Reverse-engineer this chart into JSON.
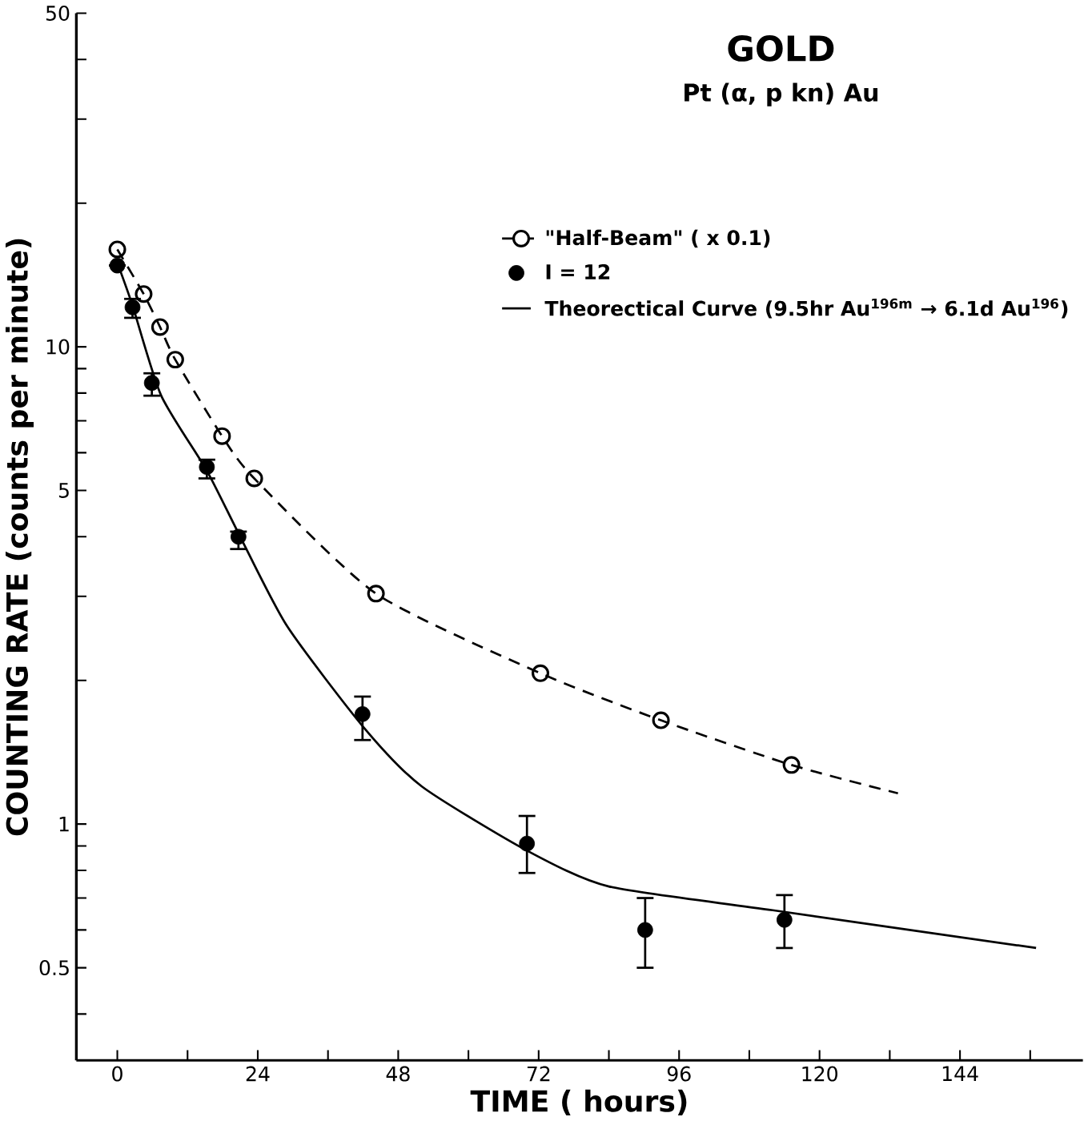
{
  "chart_data": {
    "type": "line",
    "title": "GOLD",
    "subtitle": "Pt (α, p kn) Au",
    "xlabel": "TIME  ( hours)",
    "ylabel": "COUNTING  RATE  (counts per minute)",
    "log": "y",
    "xlim": [
      -7,
      165
    ],
    "ylim": [
      0.32,
      50
    ],
    "xticks": [
      0,
      {
        "value": 12,
        "label": null
      },
      24,
      {
        "value": 36,
        "label": null
      },
      48,
      {
        "value": 60,
        "label": null
      },
      72,
      {
        "value": 84,
        "label": null
      },
      96,
      {
        "value": 108,
        "label": null
      },
      120,
      {
        "value": 132,
        "label": null
      },
      144,
      {
        "value": 156,
        "label": null
      }
    ],
    "yticks": [
      {
        "value": 0.4,
        "label": null
      },
      0.5,
      {
        "value": 0.6,
        "label": null
      },
      {
        "value": 0.7,
        "label": null
      },
      {
        "value": 0.8,
        "label": null
      },
      {
        "value": 0.9,
        "label": null
      },
      1,
      {
        "value": 2,
        "label": null
      },
      {
        "value": 3,
        "label": null
      },
      {
        "value": 4,
        "label": null
      },
      5,
      {
        "value": 6,
        "label": null
      },
      {
        "value": 7,
        "label": null
      },
      {
        "value": 8,
        "label": null
      },
      {
        "value": 9,
        "label": null
      },
      10,
      {
        "value": 20,
        "label": null
      },
      {
        "value": 30,
        "label": null
      },
      {
        "value": 40,
        "label": null
      },
      50
    ],
    "legend": "top right",
    "grid": false,
    "series": [
      {
        "marker": "none",
        "line_style": "dashed",
        "color": "#000000",
        "x": [
          0,
          4.5,
          7.3,
          9.9,
          17.9,
          23.4,
          44.2,
          72.3,
          92.9,
          115.2,
          133.4
        ],
        "values": [
          16,
          12.9,
          11.0,
          9.4,
          6.5,
          5.3,
          3.04,
          2.07,
          1.65,
          1.33,
          1.16
        ]
      },
      {
        "name": "\"Half-Beam\"  ( x 0.1)",
        "type": "scatter",
        "marker": "circle",
        "line_style": "dashed",
        "color": "#000000",
        "x": [
          0,
          4.5,
          7.3,
          9.9,
          17.9,
          23.4,
          44.2,
          72.3,
          92.9,
          115.2
        ],
        "values": [
          16,
          12.9,
          11.0,
          9.4,
          6.5,
          5.3,
          3.04,
          2.07,
          1.65,
          1.33
        ]
      },
      {
        "name": "I  =  12",
        "type": "scatter",
        "marker": "circle",
        "color": "#000000",
        "x": [
          0,
          2.6,
          5.9,
          15.3,
          20.7,
          41.9,
          70.0,
          90.2,
          114
        ],
        "values": [
          14.8,
          12.1,
          8.4,
          5.6,
          4.0,
          1.7,
          0.91,
          0.6,
          0.63
        ],
        "errors": [
          null,
          [
            11.5,
            12.6
          ],
          [
            7.9,
            8.8
          ],
          [
            5.3,
            5.8
          ],
          [
            3.77,
            4.1
          ],
          [
            1.5,
            1.85
          ],
          [
            0.79,
            1.04
          ],
          [
            0.5,
            0.7
          ],
          [
            0.55,
            0.71
          ]
        ]
      },
      {
        "name": "Theorectical  Curve (9.5hr Au$^{196m}$ → 6.1d Au$^{196}$)",
        "marker": "none",
        "line_style": "solid",
        "color": "#000000",
        "x": [
          0,
          2.6,
          7.5,
          15.3,
          21,
          29,
          42,
          52,
          70,
          84,
          112,
          157
        ],
        "values": [
          15,
          12.2,
          7.9,
          5.5,
          4.0,
          2.6,
          1.6,
          1.2,
          0.88,
          0.74,
          0.66,
          0.55
        ]
      }
    ]
  }
}
